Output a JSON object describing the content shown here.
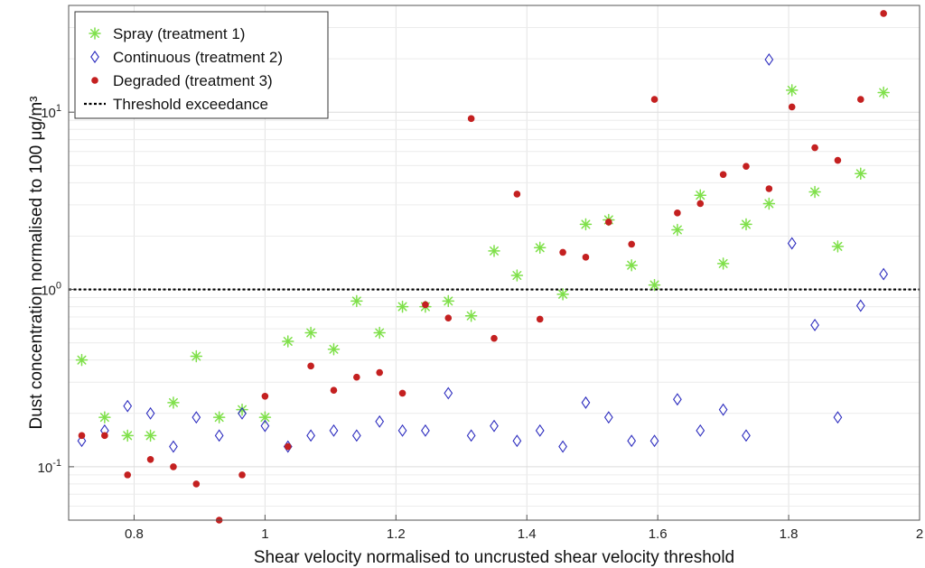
{
  "chart_data": {
    "type": "scatter",
    "xlabel": "Shear velocity normalised to uncrusted shear velocity threshold",
    "ylabel": "Dust concentration normalised to 100 μg/m³",
    "xlim": [
      0.7,
      2.0
    ],
    "ylim": [
      0.05,
      40
    ],
    "yscale": "log",
    "grid": true,
    "legend_position": "top-left",
    "x_ticks": [
      {
        "value": 0.8,
        "label": "0.8"
      },
      {
        "value": 1.0,
        "label": "1"
      },
      {
        "value": 1.2,
        "label": "1.2"
      },
      {
        "value": 1.4,
        "label": "1.4"
      },
      {
        "value": 1.6,
        "label": "1.6"
      },
      {
        "value": 1.8,
        "label": "1.8"
      },
      {
        "value": 2.0,
        "label": "2"
      }
    ],
    "y_ticks": [
      {
        "value": 0.1,
        "base": "10",
        "exp": "-1"
      },
      {
        "value": 1,
        "base": "10",
        "exp": "0"
      },
      {
        "value": 10,
        "base": "10",
        "exp": "1"
      }
    ],
    "threshold": {
      "name": "Threshold exceedance",
      "y": 1.0,
      "color": "#000000"
    },
    "series": [
      {
        "name": "Spray (treatment 1)",
        "marker": "asterisk",
        "color": "#7fe04a",
        "points": [
          [
            0.72,
            0.4
          ],
          [
            0.755,
            0.19
          ],
          [
            0.79,
            0.15
          ],
          [
            0.825,
            0.15
          ],
          [
            0.86,
            0.23
          ],
          [
            0.895,
            0.42
          ],
          [
            0.93,
            0.19
          ],
          [
            0.965,
            0.21
          ],
          [
            1.0,
            0.19
          ],
          [
            1.035,
            0.51
          ],
          [
            1.07,
            0.57
          ],
          [
            1.105,
            0.46
          ],
          [
            1.14,
            0.86
          ],
          [
            1.175,
            0.57
          ],
          [
            1.21,
            0.8
          ],
          [
            1.245,
            0.8
          ],
          [
            1.28,
            0.86
          ],
          [
            1.315,
            0.71
          ],
          [
            1.35,
            1.65
          ],
          [
            1.385,
            1.2
          ],
          [
            1.42,
            1.72
          ],
          [
            1.455,
            0.94
          ],
          [
            1.49,
            2.33
          ],
          [
            1.525,
            2.47
          ],
          [
            1.56,
            1.37
          ],
          [
            1.595,
            1.06
          ],
          [
            1.63,
            2.17
          ],
          [
            1.665,
            3.4
          ],
          [
            1.7,
            1.4
          ],
          [
            1.735,
            2.33
          ],
          [
            1.77,
            3.05
          ],
          [
            1.805,
            13.3
          ],
          [
            1.84,
            3.55
          ],
          [
            1.875,
            1.75
          ],
          [
            1.91,
            4.5
          ],
          [
            1.945,
            12.9
          ]
        ]
      },
      {
        "name": "Continuous (treatment 2)",
        "marker": "diamond",
        "color": "#2d2dbf",
        "points": [
          [
            0.72,
            0.14
          ],
          [
            0.755,
            0.16
          ],
          [
            0.79,
            0.22
          ],
          [
            0.825,
            0.2
          ],
          [
            0.86,
            0.13
          ],
          [
            0.895,
            0.19
          ],
          [
            0.93,
            0.15
          ],
          [
            0.965,
            0.2
          ],
          [
            1.0,
            0.17
          ],
          [
            1.035,
            0.13
          ],
          [
            1.07,
            0.15
          ],
          [
            1.105,
            0.16
          ],
          [
            1.14,
            0.15
          ],
          [
            1.175,
            0.18
          ],
          [
            1.21,
            0.16
          ],
          [
            1.245,
            0.16
          ],
          [
            1.28,
            0.26
          ],
          [
            1.315,
            0.15
          ],
          [
            1.35,
            0.17
          ],
          [
            1.385,
            0.14
          ],
          [
            1.42,
            0.16
          ],
          [
            1.455,
            0.13
          ],
          [
            1.49,
            0.23
          ],
          [
            1.525,
            0.19
          ],
          [
            1.56,
            0.14
          ],
          [
            1.595,
            0.14
          ],
          [
            1.63,
            0.24
          ],
          [
            1.665,
            0.16
          ],
          [
            1.7,
            0.21
          ],
          [
            1.735,
            0.15
          ],
          [
            1.77,
            19.8
          ],
          [
            1.805,
            1.82
          ],
          [
            1.84,
            0.63
          ],
          [
            1.875,
            0.19
          ],
          [
            1.91,
            0.81
          ],
          [
            1.945,
            1.22
          ]
        ]
      },
      {
        "name": "Degraded (treatment 3)",
        "marker": "dot",
        "color": "#c42020",
        "points": [
          [
            0.72,
            0.15
          ],
          [
            0.755,
            0.15
          ],
          [
            0.79,
            0.09
          ],
          [
            0.825,
            0.11
          ],
          [
            0.86,
            0.1
          ],
          [
            0.895,
            0.08
          ],
          [
            0.93,
            0.05
          ],
          [
            0.965,
            0.09
          ],
          [
            1.0,
            0.25
          ],
          [
            1.035,
            0.13
          ],
          [
            1.07,
            0.37
          ],
          [
            1.105,
            0.27
          ],
          [
            1.14,
            0.32
          ],
          [
            1.175,
            0.34
          ],
          [
            1.21,
            0.26
          ],
          [
            1.245,
            0.82
          ],
          [
            1.28,
            0.69
          ],
          [
            1.315,
            9.2
          ],
          [
            1.35,
            0.53
          ],
          [
            1.385,
            3.45
          ],
          [
            1.42,
            0.68
          ],
          [
            1.455,
            1.62
          ],
          [
            1.49,
            1.52
          ],
          [
            1.525,
            2.4
          ],
          [
            1.56,
            1.8
          ],
          [
            1.595,
            11.8
          ],
          [
            1.63,
            2.7
          ],
          [
            1.665,
            3.05
          ],
          [
            1.7,
            4.45
          ],
          [
            1.735,
            4.95
          ],
          [
            1.77,
            3.7
          ],
          [
            1.805,
            10.7
          ],
          [
            1.84,
            6.3
          ],
          [
            1.875,
            5.35
          ],
          [
            1.91,
            11.8
          ],
          [
            1.945,
            36.0
          ]
        ]
      }
    ]
  }
}
